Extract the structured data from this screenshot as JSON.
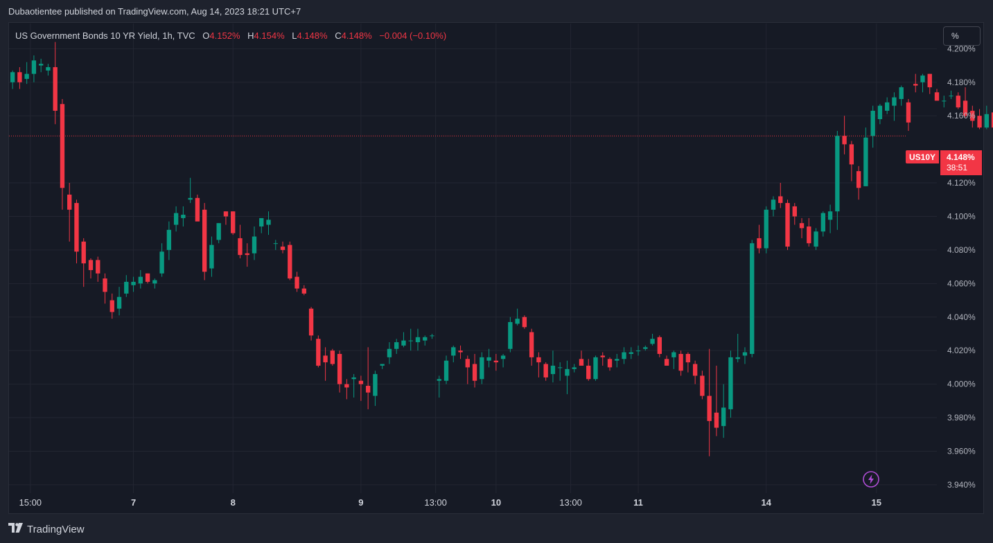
{
  "header": {
    "published": "Dubaotientee published on TradingView.com, Aug 14, 2023 18:21 UTC+7"
  },
  "legend": {
    "title": "US Government Bonds 10 YR Yield, 1h, TVC",
    "open_label": "O",
    "open_value": "4.152%",
    "high_label": "H",
    "high_value": "4.154%",
    "low_label": "L",
    "low_value": "4.148%",
    "close_label": "C",
    "close_value": "4.148%",
    "change": "−0.004 (−0.10%)"
  },
  "scale_button": {
    "label": "%"
  },
  "price_tag": {
    "symbol": "US10Y",
    "price": "4.148%",
    "countdown": "38:51"
  },
  "footer": {
    "brand": "TradingView"
  },
  "icons": {
    "logo": "tradingview-logo-icon",
    "lightning": "lightning-icon"
  },
  "colors": {
    "up": "#089981",
    "down": "#f23645",
    "accent": "#b04dd6"
  },
  "chart_data": {
    "type": "candlestick",
    "y_axis": {
      "ticks": [
        "4.200%",
        "4.180%",
        "4.160%",
        "4.120%",
        "4.100%",
        "4.080%",
        "4.060%",
        "4.040%",
        "4.020%",
        "4.000%",
        "3.980%",
        "3.960%",
        "3.940%"
      ],
      "tick_values": [
        4.2,
        4.18,
        4.16,
        4.12,
        4.1,
        4.08,
        4.06,
        4.04,
        4.02,
        4.0,
        3.98,
        3.96,
        3.94
      ],
      "ylim": [
        3.935,
        4.215
      ],
      "unit": "%"
    },
    "x_axis": {
      "ticks": [
        "15:00",
        "7",
        "8",
        "9",
        "13:00",
        "10",
        "13:00",
        "11",
        "14",
        "15"
      ],
      "bold_ticks": [
        "7",
        "8",
        "9",
        "10",
        "11",
        "14",
        "15"
      ],
      "tick_bar_index": [
        2.5,
        17,
        31,
        49,
        59.5,
        68,
        78.5,
        88,
        106,
        121.5
      ],
      "xlim": [
        -0.5,
        130
      ]
    },
    "last_price": 4.148,
    "candles": [
      [
        4.18,
        4.187,
        4.176,
        4.186
      ],
      [
        4.186,
        4.189,
        4.176,
        4.18
      ],
      [
        4.182,
        4.192,
        4.179,
        4.185
      ],
      [
        4.185,
        4.196,
        4.18,
        4.193
      ],
      [
        4.19,
        4.194,
        4.186,
        4.191
      ],
      [
        4.187,
        4.191,
        4.184,
        4.189
      ],
      [
        4.189,
        4.204,
        4.155,
        4.163
      ],
      [
        4.167,
        4.17,
        4.104,
        4.117
      ],
      [
        4.113,
        4.12,
        4.085,
        4.104
      ],
      [
        4.108,
        4.11,
        4.072,
        4.079
      ],
      [
        4.085,
        4.087,
        4.058,
        4.072
      ],
      [
        4.074,
        4.075,
        4.063,
        4.068
      ],
      [
        4.074,
        4.076,
        4.061,
        4.066
      ],
      [
        4.063,
        4.066,
        4.048,
        4.055
      ],
      [
        4.05,
        4.054,
        4.039,
        4.043
      ],
      [
        4.045,
        4.058,
        4.041,
        4.052
      ],
      [
        4.054,
        4.065,
        4.052,
        4.061
      ],
      [
        4.059,
        4.064,
        4.055,
        4.061
      ],
      [
        4.06,
        4.068,
        4.057,
        4.064
      ],
      [
        4.066,
        4.066,
        4.06,
        4.061
      ],
      [
        4.06,
        4.063,
        4.057,
        4.062
      ],
      [
        4.066,
        4.084,
        4.064,
        4.079
      ],
      [
        4.08,
        4.097,
        4.074,
        4.092
      ],
      [
        4.095,
        4.106,
        4.091,
        4.102
      ],
      [
        4.099,
        4.106,
        4.094,
        4.101
      ],
      [
        4.11,
        4.123,
        4.108,
        4.111
      ],
      [
        4.111,
        4.113,
        4.098,
        4.097
      ],
      [
        4.104,
        4.108,
        4.062,
        4.067
      ],
      [
        4.069,
        4.088,
        4.064,
        4.083
      ],
      [
        4.086,
        4.096,
        4.084,
        4.096
      ],
      [
        4.103,
        4.103,
        4.095,
        4.1
      ],
      [
        4.103,
        4.103,
        4.089,
        4.09
      ],
      [
        4.087,
        4.095,
        4.075,
        4.077
      ],
      [
        4.078,
        4.084,
        4.07,
        4.077
      ],
      [
        4.078,
        4.094,
        4.074,
        4.088
      ],
      [
        4.094,
        4.098,
        4.09,
        4.099
      ],
      [
        4.095,
        4.103,
        4.089,
        4.098
      ],
      [
        4.084,
        4.086,
        4.08,
        4.084
      ],
      [
        4.082,
        4.085,
        4.078,
        4.08
      ],
      [
        4.083,
        4.085,
        4.062,
        4.063
      ],
      [
        4.064,
        4.067,
        4.055,
        4.057
      ],
      [
        4.057,
        4.059,
        4.053,
        4.054
      ],
      [
        4.045,
        4.046,
        4.026,
        4.029
      ],
      [
        4.027,
        4.029,
        4.01,
        4.011
      ],
      [
        4.017,
        4.022,
        4.002,
        4.013
      ],
      [
        4.02,
        4.021,
        4.011,
        4.012
      ],
      [
        4.018,
        4.02,
        3.995,
        4.0
      ],
      [
        4.0,
        4.003,
        3.991,
        3.998
      ],
      [
        4.003,
        4.006,
        3.992,
        4.004
      ],
      [
        4.002,
        4.005,
        3.99,
        4.0
      ],
      [
        3.999,
        4.022,
        3.985,
        3.995
      ],
      [
        3.993,
        4.008,
        3.987,
        4.006
      ],
      [
        4.011,
        4.012,
        4.009,
        4.012
      ],
      [
        4.016,
        4.025,
        4.012,
        4.021
      ],
      [
        4.021,
        4.027,
        4.018,
        4.025
      ],
      [
        4.023,
        4.031,
        4.022,
        4.026
      ],
      [
        4.026,
        4.033,
        4.02,
        4.026
      ],
      [
        4.025,
        4.033,
        4.02,
        4.028
      ],
      [
        4.026,
        4.029,
        4.023,
        4.028
      ],
      [
        4.029,
        4.03,
        4.027,
        4.029
      ],
      [
        4.002,
        4.005,
        3.992,
        4.003
      ],
      [
        4.002,
        4.017,
        4.0,
        4.014
      ],
      [
        4.017,
        4.023,
        4.013,
        4.022
      ],
      [
        4.02,
        4.023,
        4.015,
        4.019
      ],
      [
        4.015,
        4.017,
        4.0,
        4.01
      ],
      [
        4.012,
        4.018,
        3.998,
        4.002
      ],
      [
        4.003,
        4.019,
        4.0,
        4.016
      ],
      [
        4.014,
        4.021,
        4.01,
        4.016
      ],
      [
        4.014,
        4.018,
        4.008,
        4.013
      ],
      [
        4.015,
        4.018,
        4.01,
        4.017
      ],
      [
        4.021,
        4.04,
        4.019,
        4.037
      ],
      [
        4.036,
        4.045,
        4.035,
        4.039
      ],
      [
        4.04,
        4.041,
        4.033,
        4.034
      ],
      [
        4.031,
        4.033,
        4.011,
        4.016
      ],
      [
        4.016,
        4.019,
        4.004,
        4.013
      ],
      [
        4.012,
        4.013,
        4.002,
        4.004
      ],
      [
        4.006,
        4.02,
        4.001,
        4.011
      ],
      [
        4.01,
        4.013,
        4.002,
        4.01
      ],
      [
        4.005,
        4.014,
        3.994,
        4.009
      ],
      [
        4.009,
        4.012,
        4.007,
        4.01
      ],
      [
        4.015,
        4.02,
        4.011,
        4.011
      ],
      [
        4.011,
        4.015,
        4.002,
        4.003
      ],
      [
        4.003,
        4.017,
        4.002,
        4.016
      ],
      [
        4.017,
        4.019,
        4.011,
        4.016
      ],
      [
        4.015,
        4.016,
        4.008,
        4.01
      ],
      [
        4.014,
        4.018,
        4.01,
        4.015
      ],
      [
        4.015,
        4.022,
        4.012,
        4.019
      ],
      [
        4.018,
        4.022,
        4.015,
        4.019
      ],
      [
        4.02,
        4.023,
        4.017,
        4.02
      ],
      [
        4.021,
        4.023,
        4.02,
        4.022
      ],
      [
        4.024,
        4.03,
        4.023,
        4.027
      ],
      [
        4.028,
        4.029,
        4.016,
        4.018
      ],
      [
        4.015,
        4.017,
        4.011,
        4.011
      ],
      [
        4.016,
        4.02,
        4.009,
        4.019
      ],
      [
        4.018,
        4.02,
        4.005,
        4.008
      ],
      [
        4.018,
        4.019,
        4.007,
        4.013
      ],
      [
        4.012,
        4.014,
        4.0,
        4.005
      ],
      [
        4.005,
        4.008,
        3.991,
        3.993
      ],
      [
        3.993,
        4.021,
        3.957,
        3.978
      ],
      [
        3.983,
        4.011,
        3.969,
        3.974
      ],
      [
        3.975,
        4.0,
        3.968,
        3.986
      ],
      [
        3.985,
        4.02,
        3.98,
        4.016
      ],
      [
        4.015,
        4.03,
        4.013,
        4.016
      ],
      [
        4.017,
        4.022,
        4.012,
        4.019
      ],
      [
        4.018,
        4.086,
        4.016,
        4.084
      ]
    ],
    "candles_part2": [
      [
        4.087,
        4.095,
        4.078,
        4.081
      ],
      [
        4.081,
        4.106,
        4.078,
        4.104
      ],
      [
        4.104,
        4.112,
        4.1,
        4.11
      ],
      [
        4.112,
        4.12,
        4.105,
        4.108
      ],
      [
        4.108,
        4.11,
        4.08,
        4.082
      ],
      [
        4.106,
        4.108,
        4.095,
        4.1
      ],
      [
        4.096,
        4.099,
        4.087,
        4.093
      ],
      [
        4.094,
        4.099,
        4.082,
        4.084
      ],
      [
        4.082,
        4.093,
        4.08,
        4.091
      ],
      [
        4.091,
        4.103,
        4.088,
        4.102
      ],
      [
        4.098,
        4.107,
        4.09,
        4.103
      ],
      [
        4.103,
        4.151,
        4.092,
        4.148
      ],
      [
        4.148,
        4.16,
        4.137,
        4.143
      ],
      [
        4.143,
        4.145,
        4.121,
        4.131
      ],
      [
        4.127,
        4.13,
        4.11,
        4.117
      ],
      [
        4.118,
        4.153,
        4.118,
        4.147
      ],
      [
        4.148,
        4.166,
        4.141,
        4.163
      ],
      [
        4.158,
        4.167,
        4.155,
        4.166
      ],
      [
        4.163,
        4.171,
        4.161,
        4.168
      ],
      [
        4.166,
        4.174,
        4.157,
        4.171
      ],
      [
        4.17,
        4.178,
        4.166,
        4.177
      ],
      [
        4.168,
        4.17,
        4.151,
        4.156
      ],
      [
        4.179,
        4.185,
        4.174,
        4.178
      ],
      [
        4.18,
        4.185,
        4.174,
        4.184
      ],
      [
        4.185,
        4.185,
        4.173,
        4.177
      ],
      [
        4.174,
        4.176,
        4.169,
        4.169
      ],
      [
        4.169,
        4.172,
        4.165,
        4.169
      ],
      [
        4.172,
        4.175,
        4.17,
        4.172
      ],
      [
        4.172,
        4.174,
        4.164,
        4.165
      ],
      [
        4.169,
        4.177,
        4.159,
        4.16
      ],
      [
        4.163,
        4.166,
        4.153,
        4.157
      ],
      [
        4.16,
        4.164,
        4.152,
        4.153
      ],
      [
        4.153,
        4.166,
        4.152,
        4.161
      ],
      [
        4.162,
        4.166,
        4.15,
        4.153
      ],
      [
        4.152,
        4.154,
        4.148,
        4.148
      ]
    ]
  }
}
